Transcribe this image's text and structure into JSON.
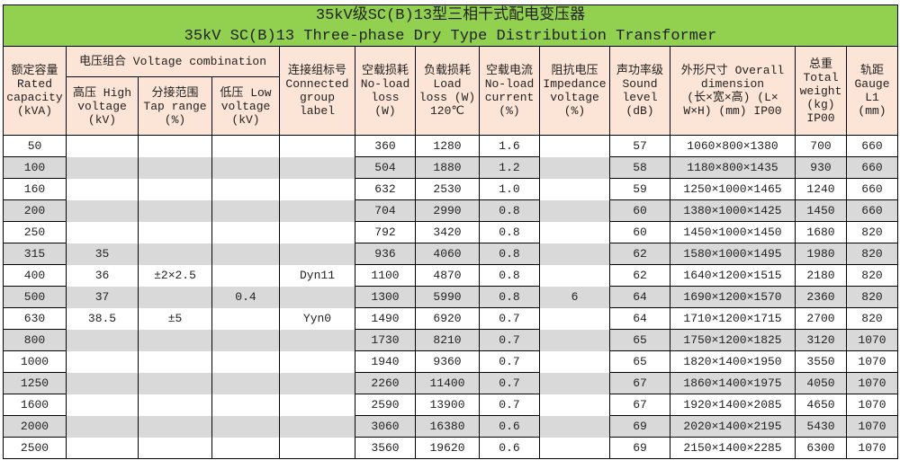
{
  "title": {
    "zh": "35kV级SC(B)13型三相干式配电变压器",
    "en": "35kV SC(B)13 Three-phase Dry Type Distribution Transformer"
  },
  "headers": {
    "capacity": [
      "额定容量",
      "Rated",
      "capacity",
      "(kVA)"
    ],
    "voltage_combination": "电压组合 Voltage combination",
    "high_voltage": [
      "高压 High",
      "voltage",
      "(kV)"
    ],
    "tap_range": [
      "分接范围",
      "Tap range",
      "(%)"
    ],
    "low_voltage": [
      "低压 Low",
      "voltage",
      "(kV)"
    ],
    "group": [
      "连接组标号",
      "Connected",
      "group",
      "label"
    ],
    "noload_loss": [
      "空载损耗",
      "No-load",
      "loss",
      "(W)"
    ],
    "load_loss": [
      "负载损耗",
      "Load",
      "loss (W)",
      "120℃"
    ],
    "noload_current": [
      "空载电流",
      "No-load",
      "current",
      "(%)"
    ],
    "impedance": [
      "阻抗电压",
      "Impedance",
      "voltage",
      "(%)"
    ],
    "sound": [
      "声功率级",
      "Sound",
      "level",
      "(dB)"
    ],
    "dimension": [
      "外形尺寸 Overall",
      "dimension",
      "(长×宽×高) (L×",
      "W×H) (mm) IP00"
    ],
    "weight": [
      "总重",
      "Total",
      "weight",
      "(kg)",
      "IP00"
    ],
    "gauge": [
      "轨距",
      "Gauge",
      "L1",
      "(mm)"
    ]
  },
  "colors": {
    "title_bg": "#92d050",
    "header_bg": "#fce4d6",
    "stripe": "#d9d9d9"
  },
  "rows": [
    [
      "50",
      "",
      "",
      "",
      "",
      "360",
      "1280",
      "1.6",
      "",
      "57",
      "1060×800×1380",
      "700",
      "660"
    ],
    [
      "100",
      "",
      "",
      "",
      "",
      "504",
      "1880",
      "1.2",
      "",
      "58",
      "1180×800×1435",
      "930",
      "660"
    ],
    [
      "160",
      "",
      "",
      "",
      "",
      "632",
      "2530",
      "1.0",
      "",
      "59",
      "1250×1000×1465",
      "1240",
      "660"
    ],
    [
      "200",
      "",
      "",
      "",
      "",
      "704",
      "2990",
      "0.8",
      "",
      "60",
      "1380×1000×1425",
      "1450",
      "660"
    ],
    [
      "250",
      "",
      "",
      "",
      "",
      "792",
      "3420",
      "0.8",
      "",
      "60",
      "1450×1000×1450",
      "1680",
      "820"
    ],
    [
      "315",
      "35",
      "",
      "",
      "",
      "936",
      "4060",
      "0.8",
      "",
      "62",
      "1580×1000×1495",
      "1980",
      "820"
    ],
    [
      "400",
      "36",
      "±2×2.5",
      "",
      "Dyn11",
      "1100",
      "4870",
      "0.8",
      "",
      "62",
      "1640×1200×1515",
      "2180",
      "820"
    ],
    [
      "500",
      "37",
      "",
      "0.4",
      "",
      "1300",
      "5990",
      "0.8",
      "6",
      "64",
      "1690×1200×1570",
      "2360",
      "820"
    ],
    [
      "630",
      "38.5",
      "±5",
      "",
      "Yyn0",
      "1490",
      "6920",
      "0.7",
      "",
      "64",
      "1710×1200×1715",
      "2700",
      "820"
    ],
    [
      "800",
      "",
      "",
      "",
      "",
      "1730",
      "8210",
      "0.7",
      "",
      "65",
      "1750×1200×1825",
      "3120",
      "1070"
    ],
    [
      "1000",
      "",
      "",
      "",
      "",
      "1940",
      "9360",
      "0.7",
      "",
      "65",
      "1820×1400×1950",
      "3550",
      "1070"
    ],
    [
      "1250",
      "",
      "",
      "",
      "",
      "2260",
      "11400",
      "0.7",
      "",
      "67",
      "1860×1400×1975",
      "4050",
      "1070"
    ],
    [
      "1600",
      "",
      "",
      "",
      "",
      "2590",
      "13900",
      "0.7",
      "",
      "67",
      "1920×1400×2085",
      "4650",
      "1070"
    ],
    [
      "2000",
      "",
      "",
      "",
      "",
      "3060",
      "16380",
      "0.6",
      "",
      "69",
      "2020×1400×2195",
      "5430",
      "1070"
    ],
    [
      "2500",
      "",
      "",
      "",
      "",
      "3560",
      "19620",
      "0.6",
      "",
      "69",
      "2150×1400×2285",
      "6300",
      "1070"
    ]
  ]
}
